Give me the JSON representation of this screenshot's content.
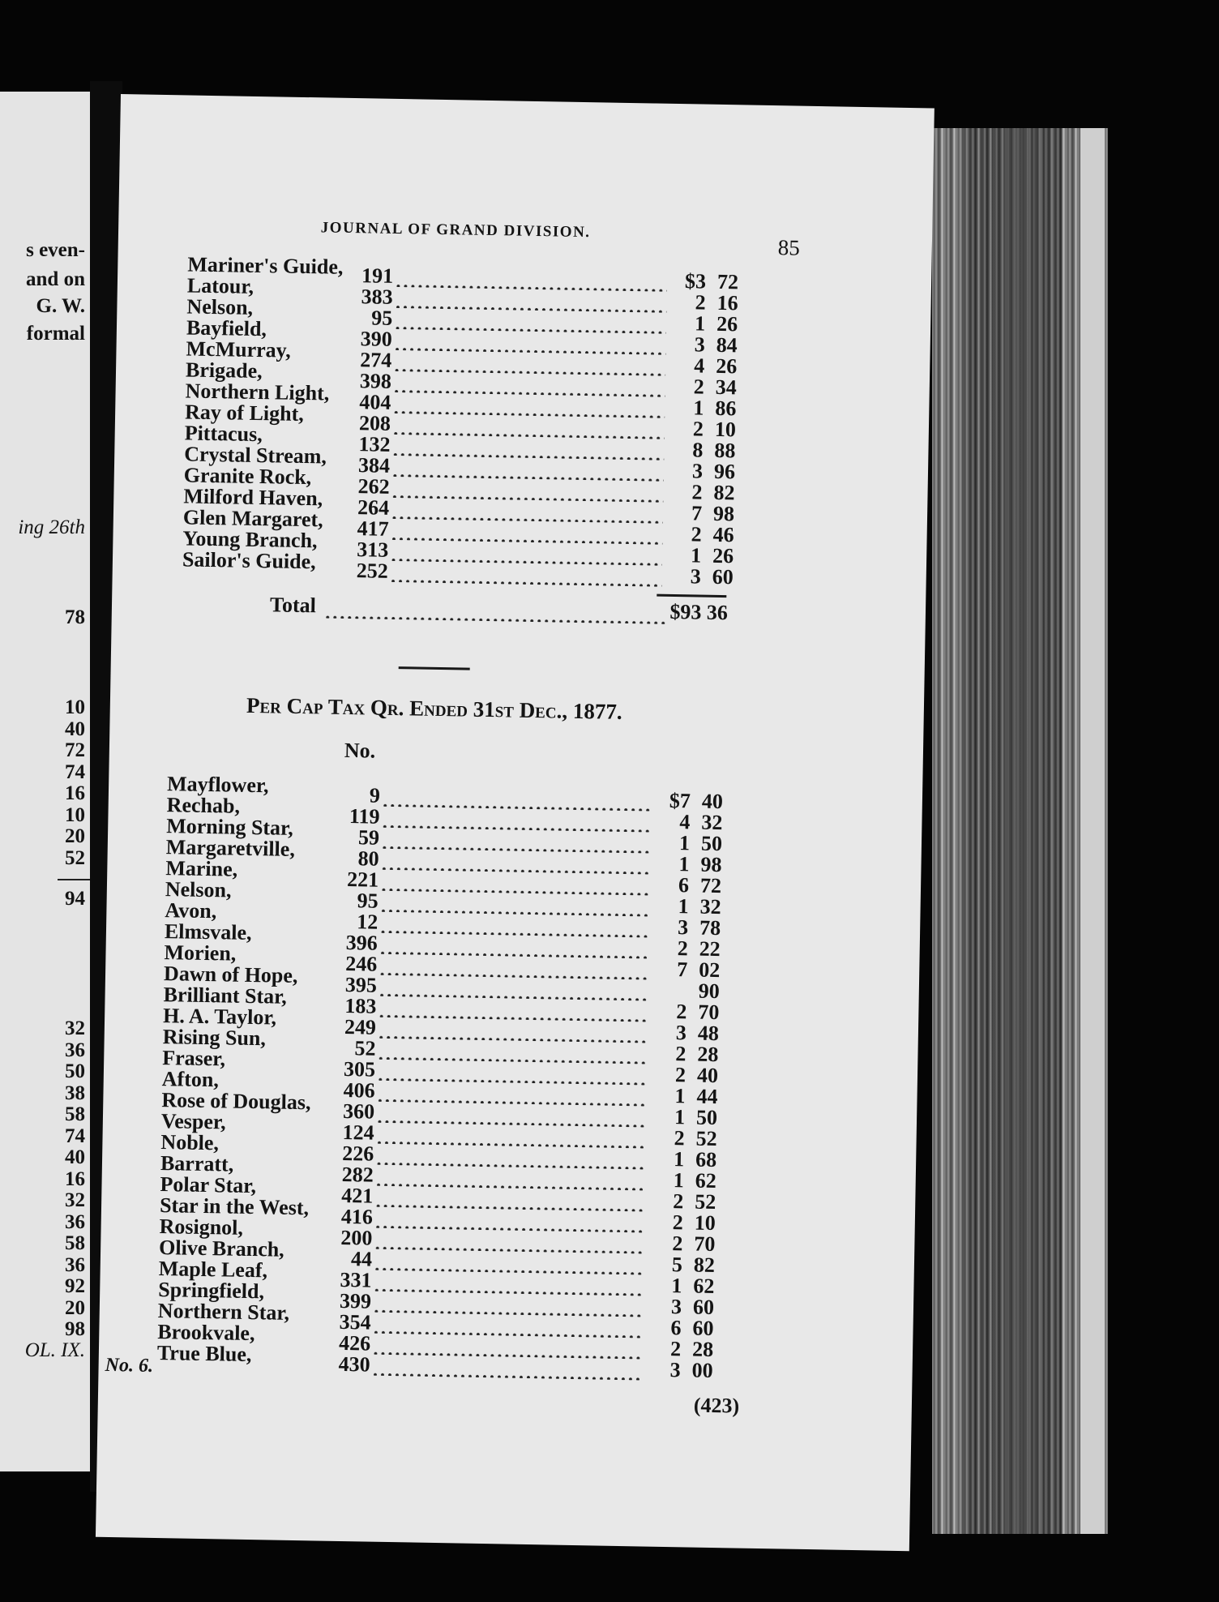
{
  "left_page": {
    "lines": [
      "s even-",
      "and on",
      "G. W.",
      "formal"
    ],
    "italic_line": "ing 26th",
    "year_fragment": "78",
    "column_a": [
      "10",
      "40",
      "72",
      "74",
      "16",
      "10",
      "20",
      "52"
    ],
    "column_a_total": "94",
    "column_b": [
      "32",
      "36",
      "50",
      "38",
      "58",
      "74",
      "40",
      "16",
      "32",
      "36",
      "58",
      "36",
      "92",
      "20",
      "98"
    ],
    "footer": "OL. IX."
  },
  "header": {
    "running_title": "JOURNAL OF GRAND DIVISION.",
    "page_number": "85"
  },
  "top_list": {
    "rows": [
      {
        "name": "Mariner's Guide,",
        "no": "191",
        "amount": "$3 72"
      },
      {
        "name": "Latour,",
        "no": "383",
        "amount": "2 16"
      },
      {
        "name": "Nelson,",
        "no": "95",
        "amount": "1 26"
      },
      {
        "name": "Bayfield,",
        "no": "390",
        "amount": "3 84"
      },
      {
        "name": "McMurray,",
        "no": "274",
        "amount": "4 26"
      },
      {
        "name": "Brigade,",
        "no": "398",
        "amount": "2 34"
      },
      {
        "name": "Northern Light,",
        "no": "404",
        "amount": "1 86"
      },
      {
        "name": "Ray of Light,",
        "no": "208",
        "amount": "2 10"
      },
      {
        "name": "Pittacus,",
        "no": "132",
        "amount": "8 88"
      },
      {
        "name": "Crystal Stream,",
        "no": "384",
        "amount": "3 96"
      },
      {
        "name": "Granite Rock,",
        "no": "262",
        "amount": "2 82"
      },
      {
        "name": "Milford Haven,",
        "no": "264",
        "amount": "7 98"
      },
      {
        "name": "Glen Margaret,",
        "no": "417",
        "amount": "2 46"
      },
      {
        "name": "Young Branch,",
        "no": "313",
        "amount": "1 26"
      },
      {
        "name": "Sailor's Guide,",
        "no": "252",
        "amount": "3 60"
      }
    ],
    "total_label": "Total",
    "total_amount": "$93 36"
  },
  "section": {
    "heading": "Per Cap Tax Qr. Ended 31st Dec., 1877.",
    "no_header": "No."
  },
  "bottom_list": {
    "rows": [
      {
        "name": "Mayflower,",
        "no": "9",
        "amount": "$7 40"
      },
      {
        "name": "Rechab,",
        "no": "119",
        "amount": "4 32"
      },
      {
        "name": "Morning Star,",
        "no": "59",
        "amount": "1 50"
      },
      {
        "name": "Margaretville,",
        "no": "80",
        "amount": "1 98"
      },
      {
        "name": "Marine,",
        "no": "221",
        "amount": "6 72"
      },
      {
        "name": "Nelson,",
        "no": "95",
        "amount": "1 32"
      },
      {
        "name": "Avon,",
        "no": "12",
        "amount": "3 78"
      },
      {
        "name": "Elmsvale,",
        "no": "396",
        "amount": "2 22"
      },
      {
        "name": "Morien,",
        "no": "246",
        "amount": "7 02"
      },
      {
        "name": "Dawn of Hope,",
        "no": "395",
        "amount": "90"
      },
      {
        "name": "Brilliant Star,",
        "no": "183",
        "amount": "2 70"
      },
      {
        "name": "H. A. Taylor,",
        "no": "249",
        "amount": "3 48"
      },
      {
        "name": "Rising Sun,",
        "no": "52",
        "amount": "2 28"
      },
      {
        "name": "Fraser,",
        "no": "305",
        "amount": "2 40"
      },
      {
        "name": "Afton,",
        "no": "406",
        "amount": "1 44"
      },
      {
        "name": "Rose of Douglas,",
        "no": "360",
        "amount": "1 50"
      },
      {
        "name": "Vesper,",
        "no": "124",
        "amount": "2 52"
      },
      {
        "name": "Noble,",
        "no": "226",
        "amount": "1 68"
      },
      {
        "name": "Barratt,",
        "no": "282",
        "amount": "1 62"
      },
      {
        "name": "Polar Star,",
        "no": "421",
        "amount": "2 52"
      },
      {
        "name": "Star in the West,",
        "no": "416",
        "amount": "2 10"
      },
      {
        "name": "Rosignol,",
        "no": "200",
        "amount": "2 70"
      },
      {
        "name": "Olive Branch,",
        "no": "44",
        "amount": "5 82"
      },
      {
        "name": "Maple Leaf,",
        "no": "331",
        "amount": "1 62"
      },
      {
        "name": "Springfield,",
        "no": "399",
        "amount": "3 60"
      },
      {
        "name": "Northern Star,",
        "no": "354",
        "amount": "6 60"
      },
      {
        "name": "Brookvale,",
        "no": "426",
        "amount": "2 28"
      },
      {
        "name": "True Blue,",
        "no": "430",
        "amount": "3 00"
      }
    ]
  },
  "footer": {
    "number_mark": "No. 6.",
    "signature": "(423)"
  }
}
